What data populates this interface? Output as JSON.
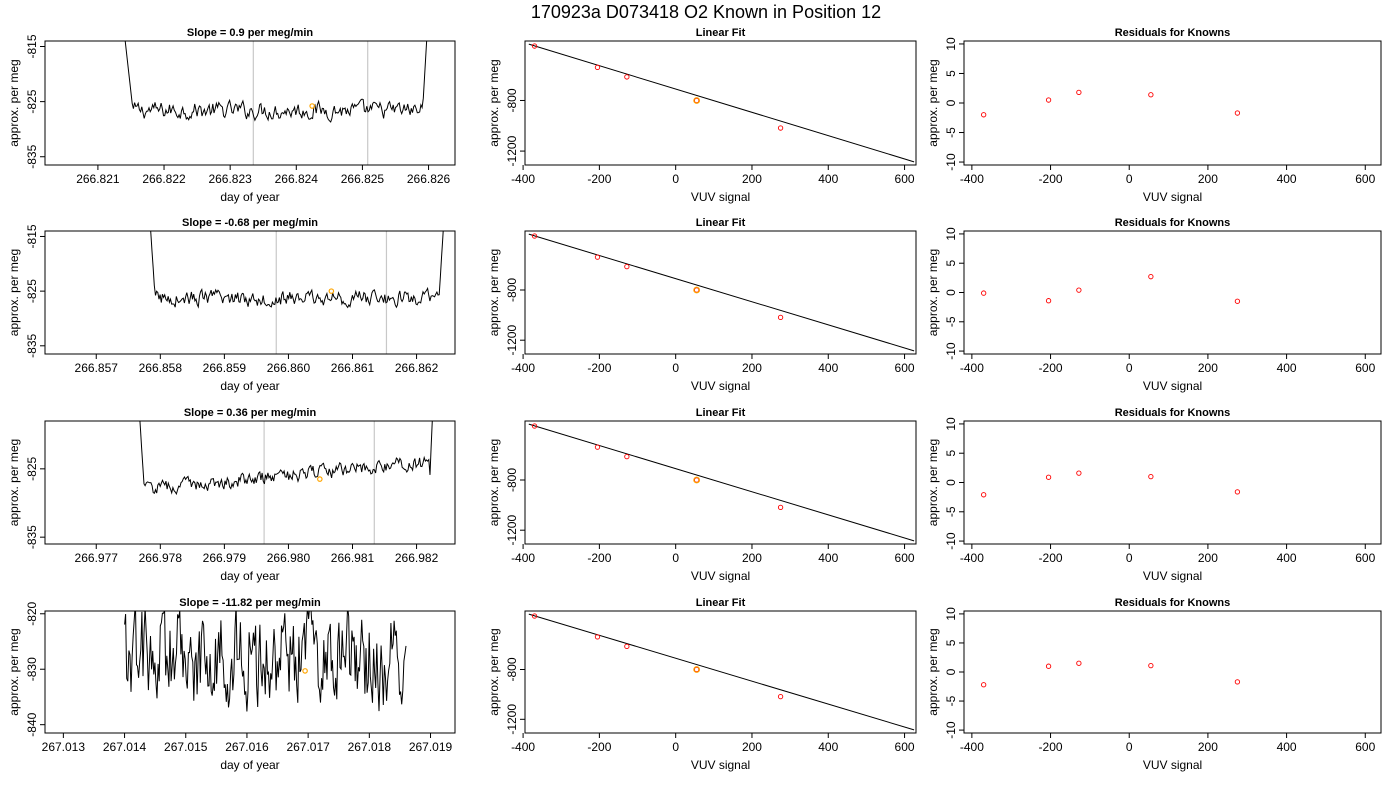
{
  "main_title": "170923a     D073418   O2 Known in Position  12",
  "colors": {
    "trace": "#000000",
    "window_line": "#c8c8c8",
    "known_point": "#ff0000",
    "highlight": "#ffa500",
    "frame": "#000000",
    "fit_line": "#000000"
  },
  "chart_data": [
    {
      "type": "line",
      "title": "Slope =  0.9  per meg/min",
      "xlabel": "day of year",
      "ylabel": "approx. per meg",
      "xlim": [
        266.8202,
        266.8264
      ],
      "ylim": [
        -836.5,
        -814.0
      ],
      "x_ticks": [
        "266.821",
        "266.822",
        "266.823",
        "266.824",
        "266.825",
        "266.826"
      ],
      "x_tick_values": [
        266.821,
        266.822,
        266.823,
        266.824,
        266.825,
        266.826
      ],
      "y_ticks": [
        "-835",
        "-825",
        "-815"
      ],
      "y_tick_values": [
        -835,
        -825,
        -815
      ],
      "window_lines": [
        266.82335,
        266.82508
      ],
      "trace": {
        "x_start": 266.8213,
        "x_end": 266.82603,
        "plateau_start": 266.82153,
        "plateau_end": 266.82591,
        "baseline": -826.6,
        "noise": 2.4,
        "wave": 0.0,
        "trend": 0.0
      },
      "highlight_point": {
        "x": 266.82424,
        "y": -825.8
      }
    },
    {
      "type": "scatter",
      "title": "Linear Fit",
      "xlabel": "VUV signal",
      "ylabel": "approx. per meg",
      "xlim": [
        -395,
        630
      ],
      "ylim": [
        -1310,
        -330
      ],
      "x_ticks": [
        "-400",
        "-200",
        "0",
        "200",
        "400",
        "600"
      ],
      "x_tick_values": [
        -400,
        -200,
        0,
        200,
        400,
        600
      ],
      "y_ticks": [
        "-1200",
        "-800"
      ],
      "y_tick_values": [
        -1200,
        -800
      ],
      "points": [
        {
          "x": -370,
          "y": -370
        },
        {
          "x": -205,
          "y": -538
        },
        {
          "x": -128,
          "y": -614
        },
        {
          "x": 55,
          "y": -800
        },
        {
          "x": 275,
          "y": -1018
        }
      ],
      "highlight_point": {
        "x": 55,
        "y": -800
      },
      "fit_line": {
        "x1": -385,
        "y1": -355,
        "x2": 625,
        "y2": -1285
      }
    },
    {
      "type": "scatter",
      "title": "Residuals for Knowns",
      "xlabel": "VUV signal",
      "ylabel": "approx. per meg",
      "xlim": [
        -420,
        640
      ],
      "ylim": [
        -10.5,
        10.5
      ],
      "x_ticks": [
        "-400",
        "-200",
        "0",
        "200",
        "400",
        "600"
      ],
      "x_tick_values": [
        -400,
        -200,
        0,
        200,
        400,
        600
      ],
      "y_ticks": [
        "-10",
        "-5",
        "0",
        "5",
        "10"
      ],
      "y_tick_values": [
        -10,
        -5,
        0,
        5,
        10
      ],
      "points": [
        {
          "x": -370,
          "y": -2.0
        },
        {
          "x": -205,
          "y": 0.5
        },
        {
          "x": -128,
          "y": 1.8
        },
        {
          "x": 55,
          "y": 1.4
        },
        {
          "x": 275,
          "y": -1.7
        }
      ]
    },
    {
      "type": "line",
      "title": "Slope =  -0.68  per meg/min",
      "xlabel": "day of year",
      "ylabel": "approx. per meg",
      "xlim": [
        266.8562,
        266.8626
      ],
      "ylim": [
        -836.5,
        -814.0
      ],
      "x_ticks": [
        "266.857",
        "266.858",
        "266.859",
        "266.860",
        "266.861",
        "266.862"
      ],
      "x_tick_values": [
        266.857,
        266.858,
        266.859,
        266.86,
        266.861,
        266.862
      ],
      "y_ticks": [
        "-835",
        "-825",
        "-815"
      ],
      "y_tick_values": [
        -835,
        -825,
        -815
      ],
      "window_lines": [
        266.85981,
        266.86153
      ],
      "trace": {
        "x_start": 266.85778,
        "x_end": 266.86248,
        "plateau_start": 266.85792,
        "plateau_end": 266.86235,
        "baseline": -826.3,
        "noise": 2.2,
        "wave": 0.0,
        "trend": 0.0
      },
      "highlight_point": {
        "x": 266.86067,
        "y": -825.0
      }
    },
    {
      "type": "scatter",
      "title": "Linear Fit",
      "xlabel": "VUV signal",
      "ylabel": "approx. per meg",
      "xlim": [
        -395,
        630
      ],
      "ylim": [
        -1310,
        -330
      ],
      "x_ticks": [
        "-400",
        "-200",
        "0",
        "200",
        "400",
        "600"
      ],
      "x_tick_values": [
        -400,
        -200,
        0,
        200,
        400,
        600
      ],
      "y_ticks": [
        "-1200",
        "-800"
      ],
      "y_tick_values": [
        -1200,
        -800
      ],
      "points": [
        {
          "x": -370,
          "y": -370
        },
        {
          "x": -205,
          "y": -538
        },
        {
          "x": -128,
          "y": -614
        },
        {
          "x": 55,
          "y": -800
        },
        {
          "x": 275,
          "y": -1018
        }
      ],
      "highlight_point": {
        "x": 55,
        "y": -800
      },
      "fit_line": {
        "x1": -385,
        "y1": -355,
        "x2": 625,
        "y2": -1285
      }
    },
    {
      "type": "scatter",
      "title": "Residuals for Knowns",
      "xlabel": "VUV signal",
      "ylabel": "approx. per meg",
      "xlim": [
        -420,
        640
      ],
      "ylim": [
        -10.5,
        10.5
      ],
      "x_ticks": [
        "-400",
        "-200",
        "0",
        "200",
        "400",
        "600"
      ],
      "x_tick_values": [
        -400,
        -200,
        0,
        200,
        400,
        600
      ],
      "y_ticks": [
        "-10",
        "-5",
        "0",
        "5",
        "10"
      ],
      "y_tick_values": [
        -10,
        -5,
        0,
        5,
        10
      ],
      "points": [
        {
          "x": -370,
          "y": -0.1
        },
        {
          "x": -205,
          "y": -1.4
        },
        {
          "x": -128,
          "y": 0.4
        },
        {
          "x": 55,
          "y": 2.7
        },
        {
          "x": 275,
          "y": -1.5
        }
      ]
    },
    {
      "type": "line",
      "title": "Slope =  0.36  per meg/min",
      "xlabel": "day of year",
      "ylabel": "approx. per meg",
      "xlim": [
        266.9762,
        266.9826
      ],
      "ylim": [
        -836.0,
        -818.0
      ],
      "x_ticks": [
        "266.977",
        "266.978",
        "266.979",
        "266.980",
        "266.981",
        "266.982"
      ],
      "x_tick_values": [
        266.977,
        266.978,
        266.979,
        266.98,
        266.981,
        266.982
      ],
      "y_ticks": [
        "-835",
        "-825"
      ],
      "y_tick_values": [
        -835,
        -825
      ],
      "window_lines": [
        266.97962,
        266.98134
      ],
      "trace": {
        "x_start": 266.9776,
        "x_end": 266.9823,
        "plateau_start": 266.97775,
        "plateau_end": 266.9822,
        "baseline": -828.0,
        "noise": 1.6,
        "wave": 0.0,
        "trend": 4.0
      },
      "highlight_point": {
        "x": 266.98049,
        "y": -826.5
      }
    },
    {
      "type": "scatter",
      "title": "Linear Fit",
      "xlabel": "VUV signal",
      "ylabel": "approx. per meg",
      "xlim": [
        -395,
        630
      ],
      "ylim": [
        -1310,
        -330
      ],
      "x_ticks": [
        "-400",
        "-200",
        "0",
        "200",
        "400",
        "600"
      ],
      "x_tick_values": [
        -400,
        -200,
        0,
        200,
        400,
        600
      ],
      "y_ticks": [
        "-1200",
        "-800"
      ],
      "y_tick_values": [
        -1200,
        -800
      ],
      "points": [
        {
          "x": -370,
          "y": -370
        },
        {
          "x": -205,
          "y": -538
        },
        {
          "x": -128,
          "y": -614
        },
        {
          "x": 55,
          "y": -800
        },
        {
          "x": 275,
          "y": -1018
        }
      ],
      "highlight_point": {
        "x": 55,
        "y": -800
      },
      "fit_line": {
        "x1": -385,
        "y1": -355,
        "x2": 625,
        "y2": -1285
      }
    },
    {
      "type": "scatter",
      "title": "Residuals for Knowns",
      "xlabel": "VUV signal",
      "ylabel": "approx. per meg",
      "xlim": [
        -420,
        640
      ],
      "ylim": [
        -10.5,
        10.5
      ],
      "x_ticks": [
        "-400",
        "-200",
        "0",
        "200",
        "400",
        "600"
      ],
      "x_tick_values": [
        -400,
        -200,
        0,
        200,
        400,
        600
      ],
      "y_ticks": [
        "-10",
        "-5",
        "0",
        "5",
        "10"
      ],
      "y_tick_values": [
        -10,
        -5,
        0,
        5,
        10
      ],
      "points": [
        {
          "x": -370,
          "y": -2.1
        },
        {
          "x": -205,
          "y": 0.9
        },
        {
          "x": -128,
          "y": 1.6
        },
        {
          "x": 55,
          "y": 1.0
        },
        {
          "x": 275,
          "y": -1.6
        }
      ]
    },
    {
      "type": "line",
      "title": "Slope =  -11.82  per meg/min",
      "xlabel": "day of year",
      "ylabel": "approx. per meg",
      "xlim": [
        267.0127,
        267.0194
      ],
      "ylim": [
        -841.5,
        -819.5
      ],
      "x_ticks": [
        "267.013",
        "267.014",
        "267.015",
        "267.016",
        "267.017",
        "267.018",
        "267.019"
      ],
      "x_tick_values": [
        267.013,
        267.014,
        267.015,
        267.016,
        267.017,
        267.018,
        267.019
      ],
      "y_ticks": [
        "-840",
        "-830",
        "-820"
      ],
      "y_tick_values": [
        -840,
        -830,
        -820
      ],
      "window_lines": [],
      "trace": {
        "x_start": 267.014,
        "x_end": 267.0186,
        "plateau_start": 267.014,
        "plateau_end": 267.0186,
        "baseline": -828.0,
        "noise": 14.0,
        "wave": 0.0,
        "trend": 0.0
      },
      "highlight_point": {
        "x": 267.01695,
        "y": -830.3
      }
    },
    {
      "type": "scatter",
      "title": "Linear Fit",
      "xlabel": "VUV signal",
      "ylabel": "approx. per meg",
      "xlim": [
        -395,
        630
      ],
      "ylim": [
        -1310,
        -330
      ],
      "x_ticks": [
        "-400",
        "-200",
        "0",
        "200",
        "400",
        "600"
      ],
      "x_tick_values": [
        -400,
        -200,
        0,
        200,
        400,
        600
      ],
      "y_ticks": [
        "-1200",
        "-800"
      ],
      "y_tick_values": [
        -1200,
        -800
      ],
      "points": [
        {
          "x": -370,
          "y": -370
        },
        {
          "x": -205,
          "y": -538
        },
        {
          "x": -128,
          "y": -614
        },
        {
          "x": 55,
          "y": -800
        },
        {
          "x": 275,
          "y": -1018
        }
      ],
      "highlight_point": {
        "x": 55,
        "y": -800
      },
      "fit_line": {
        "x1": -385,
        "y1": -355,
        "x2": 625,
        "y2": -1285
      }
    },
    {
      "type": "scatter",
      "title": "Residuals for Knowns",
      "xlabel": "VUV signal",
      "ylabel": "approx. per meg",
      "xlim": [
        -420,
        640
      ],
      "ylim": [
        -10.5,
        10.5
      ],
      "x_ticks": [
        "-400",
        "-200",
        "0",
        "200",
        "400",
        "600"
      ],
      "x_tick_values": [
        -400,
        -200,
        0,
        200,
        400,
        600
      ],
      "y_ticks": [
        "-10",
        "-5",
        "0",
        "5",
        "10"
      ],
      "y_tick_values": [
        -10,
        -5,
        0,
        5,
        10
      ],
      "points": [
        {
          "x": -370,
          "y": -2.2
        },
        {
          "x": -205,
          "y": 1.0
        },
        {
          "x": -128,
          "y": 1.5
        },
        {
          "x": 55,
          "y": 1.1
        },
        {
          "x": 275,
          "y": -1.7
        }
      ]
    }
  ]
}
